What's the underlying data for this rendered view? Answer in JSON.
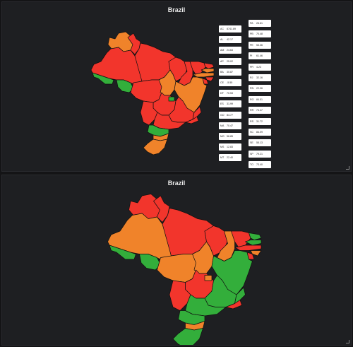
{
  "dashboard": {
    "panels": [
      {
        "title": "Brazil"
      },
      {
        "title": "Brazil"
      }
    ]
  },
  "legend": [
    {
      "code": "AC",
      "value": "8741.89"
    },
    {
      "code": "AL",
      "value": "42.17"
    },
    {
      "code": "AM",
      "value": "24.63"
    },
    {
      "code": "AP",
      "value": "25.02"
    },
    {
      "code": "BA",
      "value": "30.87"
    },
    {
      "code": "CE",
      "value": "-5.55"
    },
    {
      "code": "DF",
      "value": "70.53"
    },
    {
      "code": "ES",
      "value": "31.99"
    },
    {
      "code": "GO",
      "value": "84.77"
    },
    {
      "code": "MA",
      "value": "70.47"
    },
    {
      "code": "MG",
      "value": "56.85"
    },
    {
      "code": "MS",
      "value": "12.83"
    },
    {
      "code": "MT",
      "value": "22.40"
    },
    {
      "code": "PA",
      "value": "26.61"
    },
    {
      "code": "PB",
      "value": "70.48"
    },
    {
      "code": "PE",
      "value": "53.36"
    },
    {
      "code": "PI",
      "value": "61.46"
    },
    {
      "code": "PR",
      "value": "4.23"
    },
    {
      "code": "RJ",
      "value": "32.16"
    },
    {
      "code": "RN",
      "value": "22.06"
    },
    {
      "code": "RO",
      "value": "84.51"
    },
    {
      "code": "RR",
      "value": "74.47"
    },
    {
      "code": "RS",
      "value": "31.72"
    },
    {
      "code": "SC",
      "value": "84.09"
    },
    {
      "code": "SE",
      "value": "55.13"
    },
    {
      "code": "SP",
      "value": "79.21"
    },
    {
      "code": "TO",
      "value": "73.40"
    }
  ],
  "colors": {
    "red": "#f2352c",
    "orange": "#f0832a",
    "green": "#33ae3b",
    "border": "#111111",
    "panel_bg": "#1e1f22"
  },
  "map_top_states": {
    "RR": "orange",
    "AP": "red",
    "AM": "red",
    "PA": "red",
    "AC": "green",
    "RO": "green",
    "MT": "red",
    "TO": "orange",
    "MA": "red",
    "PI": "red",
    "CE": "red",
    "RN": "red",
    "PB": "orange",
    "PE": "orange",
    "AL": "red",
    "SE": "red",
    "BA": "orange",
    "GO": "red",
    "DF": "green",
    "MG": "red",
    "ES": "red",
    "RJ": "red",
    "MS": "red",
    "SP": "red",
    "PR": "green",
    "SC": "orange",
    "RS": "orange"
  },
  "map_bottom_states": {
    "RR": "red",
    "AP": "red",
    "AM": "orange",
    "PA": "red",
    "AC": "green",
    "RO": "green",
    "MT": "orange",
    "TO": "orange",
    "MA": "red",
    "PI": "orange",
    "CE": "red",
    "RN": "green",
    "PB": "green",
    "PE": "red",
    "AL": "orange",
    "SE": "red",
    "BA": "green",
    "GO": "red",
    "DF": "orange",
    "MG": "green",
    "ES": "green",
    "RJ": "red",
    "MS": "red",
    "SP": "green",
    "PR": "green",
    "SC": "orange",
    "RS": "green"
  }
}
